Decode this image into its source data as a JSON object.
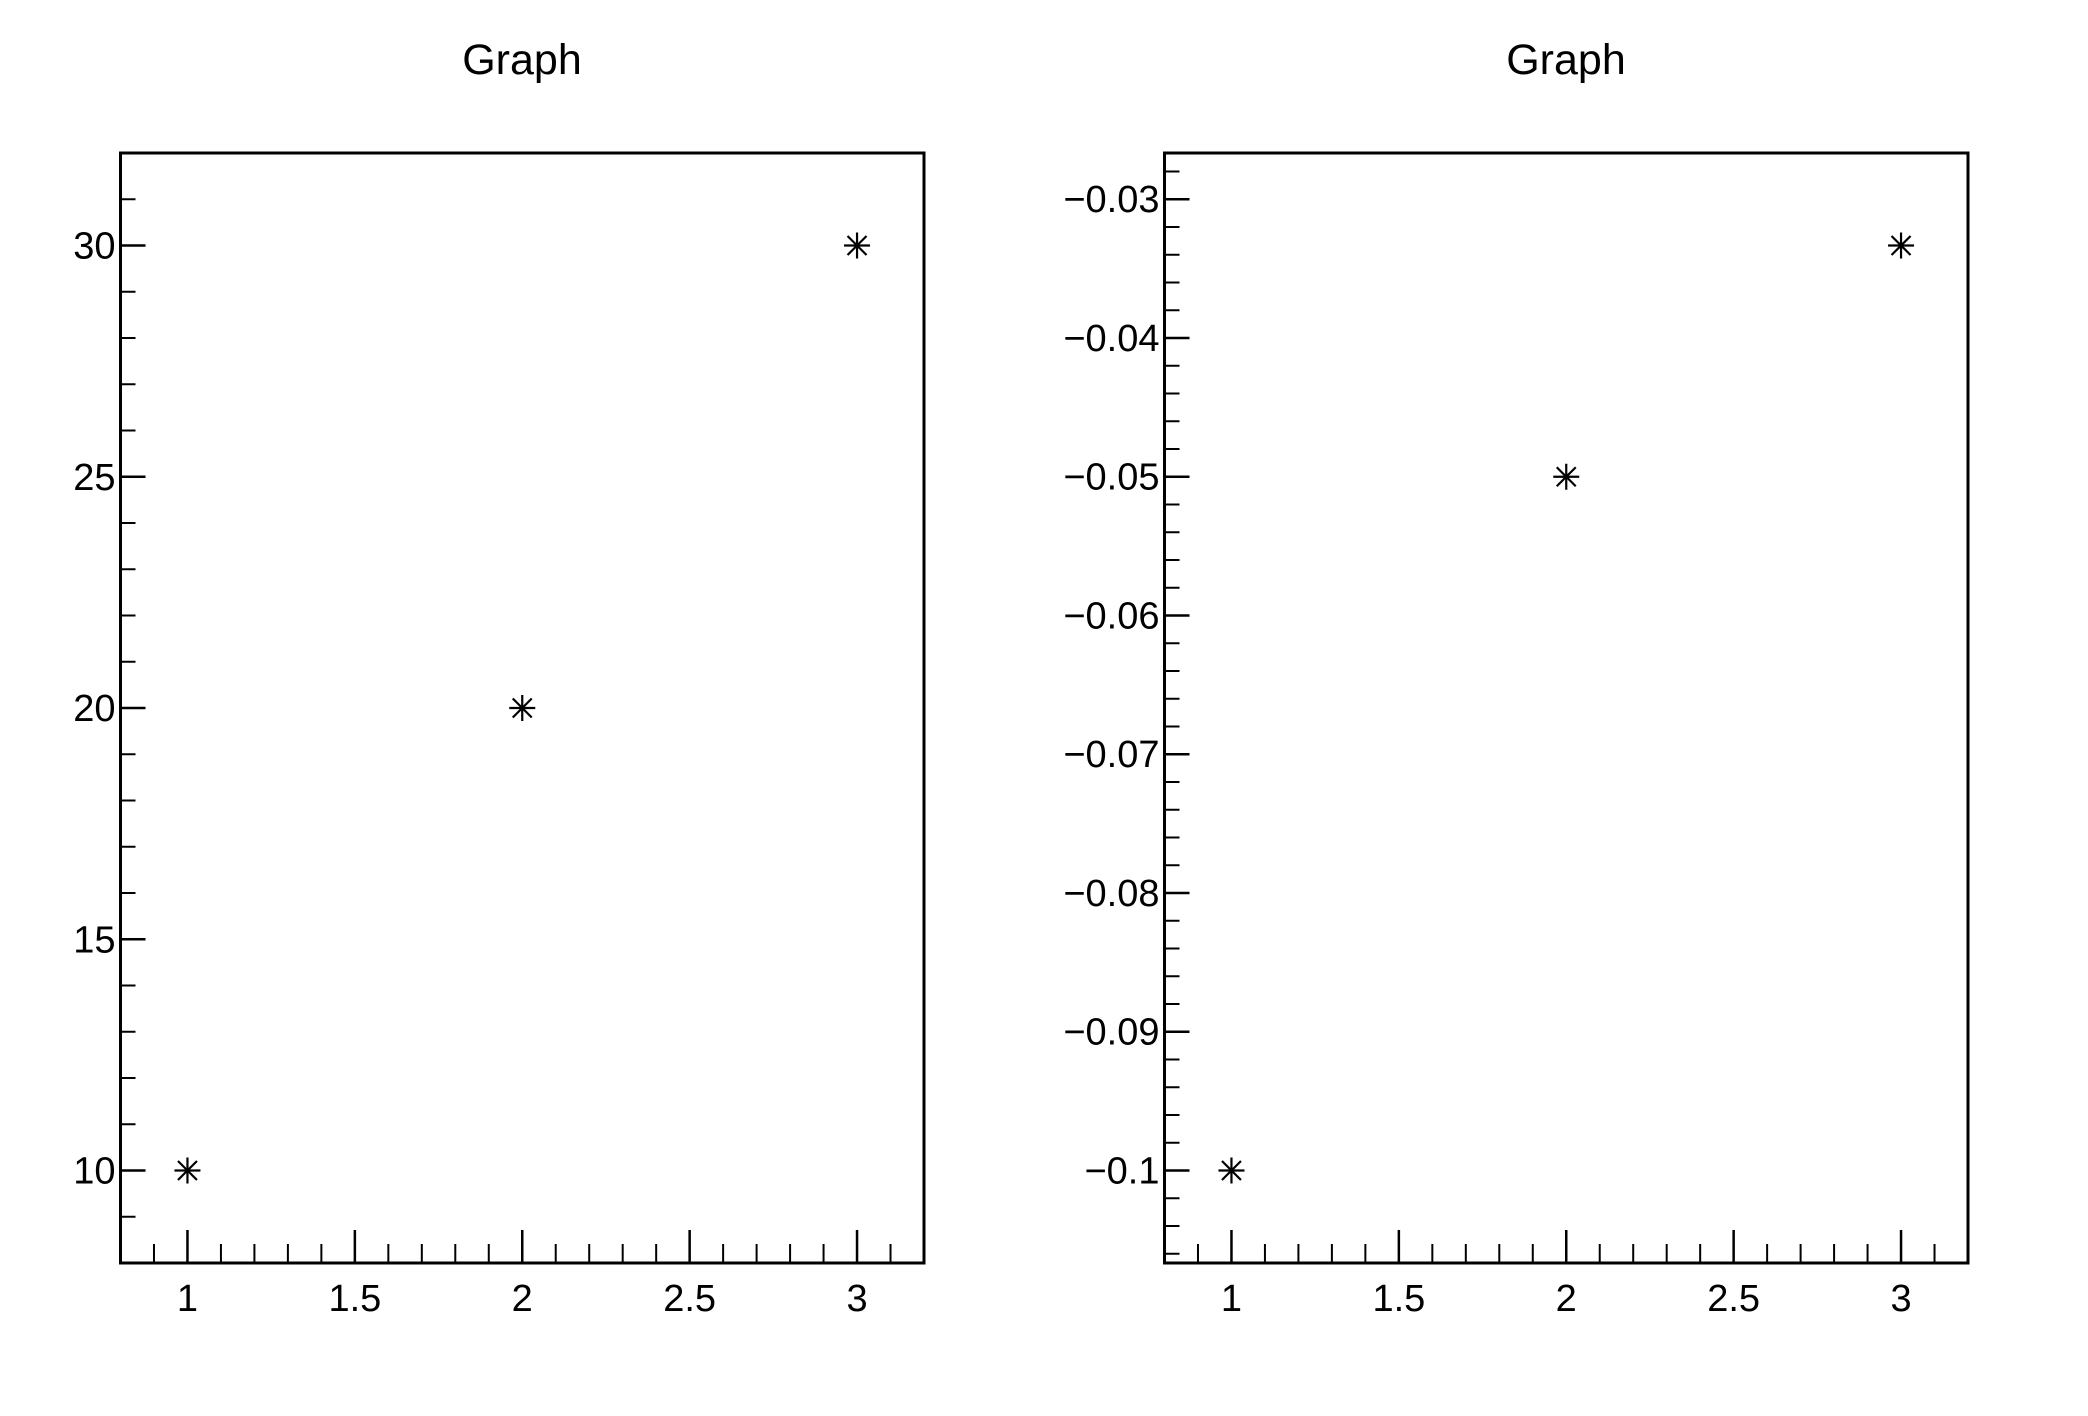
{
  "canvas": {
    "background_color": "#ffffff",
    "foreground_color": "#000000"
  },
  "chart_data": [
    {
      "type": "scatter",
      "title": "Graph",
      "xlabel": "",
      "ylabel": "",
      "legend": null,
      "grid": false,
      "marker": "asterisk-8-spoke",
      "marker_color": "#000000",
      "x": [
        1,
        2,
        3
      ],
      "y": [
        10,
        20,
        30
      ],
      "xlim": [
        0.8,
        3.2
      ],
      "ylim": [
        8,
        32
      ],
      "x_ticks": {
        "major": [
          {
            "v": 1,
            "label": "1"
          },
          {
            "v": 1.5,
            "label": "1.5"
          },
          {
            "v": 2,
            "label": "2"
          },
          {
            "v": 2.5,
            "label": "2.5"
          },
          {
            "v": 3,
            "label": "3"
          }
        ],
        "minor": [
          0.9,
          1.1,
          1.2,
          1.3,
          1.4,
          1.6,
          1.7,
          1.8,
          1.9,
          2.1,
          2.2,
          2.3,
          2.4,
          2.6,
          2.7,
          2.8,
          2.9,
          3.1
        ]
      },
      "y_ticks": {
        "major": [
          {
            "v": 10,
            "label": "10"
          },
          {
            "v": 15,
            "label": "15"
          },
          {
            "v": 20,
            "label": "20"
          },
          {
            "v": 25,
            "label": "25"
          },
          {
            "v": 30,
            "label": "30"
          }
        ],
        "minor": [
          9,
          11,
          12,
          13,
          14,
          16,
          17,
          18,
          19,
          21,
          22,
          23,
          24,
          26,
          27,
          28,
          29,
          31
        ]
      }
    },
    {
      "type": "scatter",
      "title": "Graph",
      "xlabel": "",
      "ylabel": "",
      "legend": null,
      "grid": false,
      "marker": "asterisk-8-spoke",
      "marker_color": "#000000",
      "x": [
        1,
        2,
        3
      ],
      "y": [
        -0.1,
        -0.05,
        -0.0333333
      ],
      "xlim": [
        0.8,
        3.2
      ],
      "ylim": [
        -0.1066667,
        -0.0266667
      ],
      "x_ticks": {
        "major": [
          {
            "v": 1,
            "label": "1"
          },
          {
            "v": 1.5,
            "label": "1.5"
          },
          {
            "v": 2,
            "label": "2"
          },
          {
            "v": 2.5,
            "label": "2.5"
          },
          {
            "v": 3,
            "label": "3"
          }
        ],
        "minor": [
          0.9,
          1.1,
          1.2,
          1.3,
          1.4,
          1.6,
          1.7,
          1.8,
          1.9,
          2.1,
          2.2,
          2.3,
          2.4,
          2.6,
          2.7,
          2.8,
          2.9,
          3.1
        ]
      },
      "y_ticks": {
        "major": [
          {
            "v": -0.03,
            "label": "−0.03"
          },
          {
            "v": -0.04,
            "label": "−0.04"
          },
          {
            "v": -0.05,
            "label": "−0.05"
          },
          {
            "v": -0.06,
            "label": "−0.06"
          },
          {
            "v": -0.07,
            "label": "−0.07"
          },
          {
            "v": -0.08,
            "label": "−0.08"
          },
          {
            "v": -0.09,
            "label": "−0.09"
          },
          {
            "v": -0.1,
            "label": "−0.1"
          }
        ],
        "minor": [
          -0.028,
          -0.032,
          -0.034,
          -0.036,
          -0.038,
          -0.042,
          -0.044,
          -0.046,
          -0.048,
          -0.052,
          -0.054,
          -0.056,
          -0.058,
          -0.062,
          -0.064,
          -0.066,
          -0.068,
          -0.072,
          -0.074,
          -0.076,
          -0.078,
          -0.082,
          -0.084,
          -0.086,
          -0.088,
          -0.092,
          -0.094,
          -0.096,
          -0.098,
          -0.102,
          -0.104,
          -0.106
        ]
      }
    }
  ]
}
